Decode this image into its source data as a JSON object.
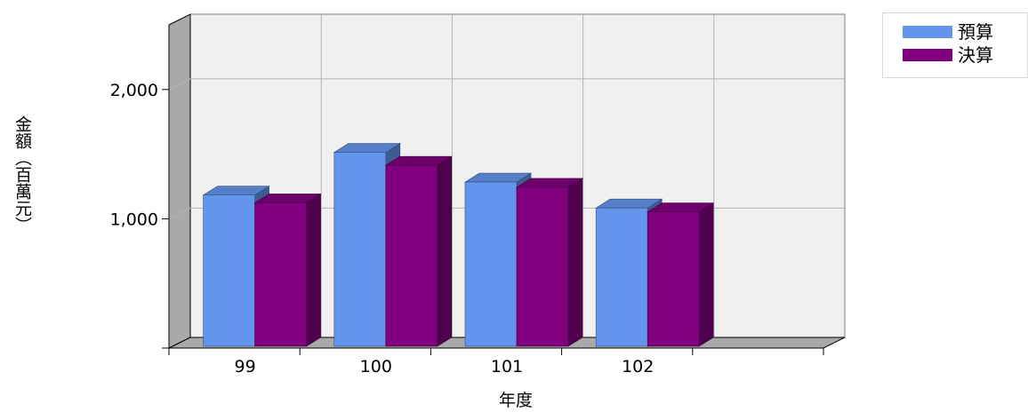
{
  "chart_data": {
    "type": "bar",
    "categories": [
      "99",
      "100",
      "101",
      "102"
    ],
    "series": [
      {
        "name": "預算",
        "values": [
          1170,
          1500,
          1270,
          1070
        ],
        "color": "#6495ED"
      },
      {
        "name": "決算",
        "values": [
          1110,
          1400,
          1230,
          1040
        ],
        "color": "#800080"
      }
    ],
    "ylabel": "金額（百萬元）",
    "xlabel": "年度",
    "ylim": [
      0,
      2500
    ],
    "yticks": [
      {
        "value": 1000,
        "label": "1,000"
      },
      {
        "value": 2000,
        "label": "2,000"
      }
    ],
    "grid": true,
    "legend": "top-right",
    "style": "3d"
  }
}
